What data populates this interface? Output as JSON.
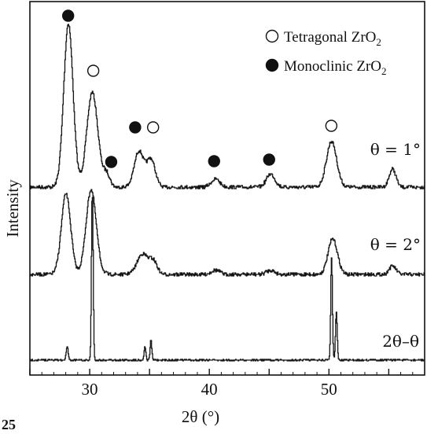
{
  "chart_data": {
    "type": "line",
    "xlabel": "2θ (°)",
    "ylabel": "Intensity",
    "xlim": [
      25,
      58
    ],
    "x_ticks": [
      "30",
      "40",
      "50"
    ],
    "x_tick_values": [
      30,
      40,
      50
    ],
    "y_ticks_shown": false,
    "legend": {
      "placement": "top-right",
      "entries": [
        {
          "marker": "open-circle",
          "name": "Tetragonal ZrO",
          "sub": "2"
        },
        {
          "marker": "filled-circle",
          "name": "Monoclinic ZrO",
          "sub": "2"
        }
      ]
    },
    "series": [
      {
        "name": "θ = 1°",
        "baseline": 0.0,
        "peaks": [
          {
            "x": 28.2,
            "height": 1.0,
            "width": 0.55
          },
          {
            "x": 30.2,
            "height": 0.58,
            "width": 0.65
          },
          {
            "x": 31.4,
            "height": 0.08,
            "width": 0.4
          },
          {
            "x": 34.1,
            "height": 0.22,
            "width": 0.55
          },
          {
            "x": 35.1,
            "height": 0.17,
            "width": 0.5
          },
          {
            "x": 40.5,
            "height": 0.05,
            "width": 0.5
          },
          {
            "x": 45.1,
            "height": 0.08,
            "width": 0.5
          },
          {
            "x": 50.2,
            "height": 0.28,
            "width": 0.6
          },
          {
            "x": 55.3,
            "height": 0.11,
            "width": 0.4
          }
        ],
        "markers": [
          {
            "x": 28.2,
            "type": "filled-circle"
          },
          {
            "x": 30.3,
            "type": "open-circle"
          },
          {
            "x": 31.8,
            "type": "filled-circle"
          },
          {
            "x": 33.8,
            "type": "filled-circle"
          },
          {
            "x": 35.3,
            "type": "open-circle"
          },
          {
            "x": 40.4,
            "type": "filled-circle"
          },
          {
            "x": 45.0,
            "type": "filled-circle"
          },
          {
            "x": 50.2,
            "type": "open-circle"
          }
        ]
      },
      {
        "name": "θ = 2°",
        "peaks": [
          {
            "x": 28.0,
            "height": 0.95,
            "width": 0.55
          },
          {
            "x": 30.1,
            "height": 1.0,
            "width": 0.6
          },
          {
            "x": 34.4,
            "height": 0.24,
            "width": 0.65
          },
          {
            "x": 35.3,
            "height": 0.15,
            "width": 0.45
          },
          {
            "x": 40.5,
            "height": 0.05,
            "width": 0.5
          },
          {
            "x": 45.1,
            "height": 0.05,
            "width": 0.5
          },
          {
            "x": 50.3,
            "height": 0.42,
            "width": 0.55
          },
          {
            "x": 55.3,
            "height": 0.1,
            "width": 0.4
          }
        ]
      },
      {
        "name": "2θ–θ",
        "peaks": [
          {
            "x": 28.1,
            "height": 0.08,
            "width": 0.12
          },
          {
            "x": 30.2,
            "height": 1.0,
            "width": 0.1
          },
          {
            "x": 34.6,
            "height": 0.08,
            "width": 0.1
          },
          {
            "x": 35.1,
            "height": 0.12,
            "width": 0.1
          },
          {
            "x": 50.2,
            "height": 0.61,
            "width": 0.1
          },
          {
            "x": 50.6,
            "height": 0.28,
            "width": 0.1
          }
        ]
      }
    ]
  },
  "figure_label": "25"
}
